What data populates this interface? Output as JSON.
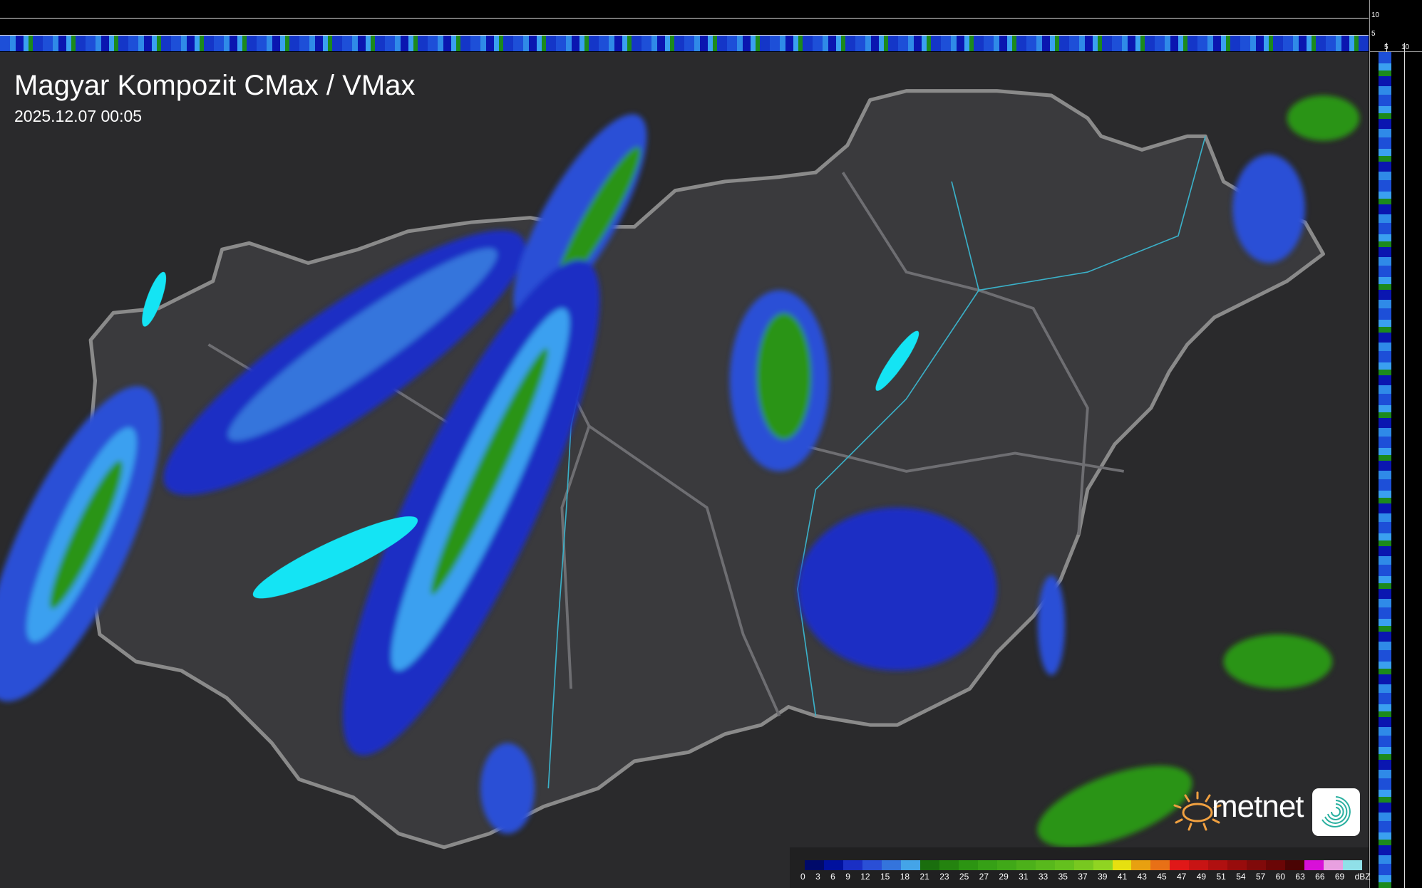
{
  "map": {
    "title": "Magyar Kompozit CMax / VMax",
    "timestamp": "2025.12.07 00:05"
  },
  "cross_section": {
    "top_axis_labels": [
      "10",
      "5"
    ],
    "side_axis_labels": [
      "5",
      "10"
    ]
  },
  "legend": {
    "unit": "dBZ",
    "labels": [
      "0",
      "3",
      "6",
      "9",
      "12",
      "15",
      "18",
      "21",
      "23",
      "25",
      "27",
      "29",
      "31",
      "33",
      "35",
      "37",
      "39",
      "41",
      "43",
      "45",
      "47",
      "49",
      "51",
      "54",
      "57",
      "60",
      "63",
      "66",
      "69"
    ],
    "colors": [
      "#000a6a",
      "#00119e",
      "#1a2fc4",
      "#2a4fd6",
      "#3474dc",
      "#44a4e8",
      "#1a6e0e",
      "#24830f",
      "#2c9412",
      "#36a016",
      "#40a818",
      "#4cb01a",
      "#58b81c",
      "#64c01e",
      "#78c820",
      "#90d422",
      "#e6e010",
      "#e8a010",
      "#e87016",
      "#e01818",
      "#c81414",
      "#b01010",
      "#980c0c",
      "#800a0a",
      "#6a0606",
      "#4a0404",
      "#d810d8",
      "#e8a0e0",
      "#90e0e8"
    ]
  },
  "branding": {
    "name": "metnet"
  },
  "colors": {
    "background": "#2a2a2c",
    "country": "#3a3a3d",
    "border": "#8a8a8a",
    "lake": "#14e4f4",
    "rain_light": "#2a4fd6",
    "rain_medium": "#3aa0f0",
    "rain_heavy": "#2c9412"
  }
}
